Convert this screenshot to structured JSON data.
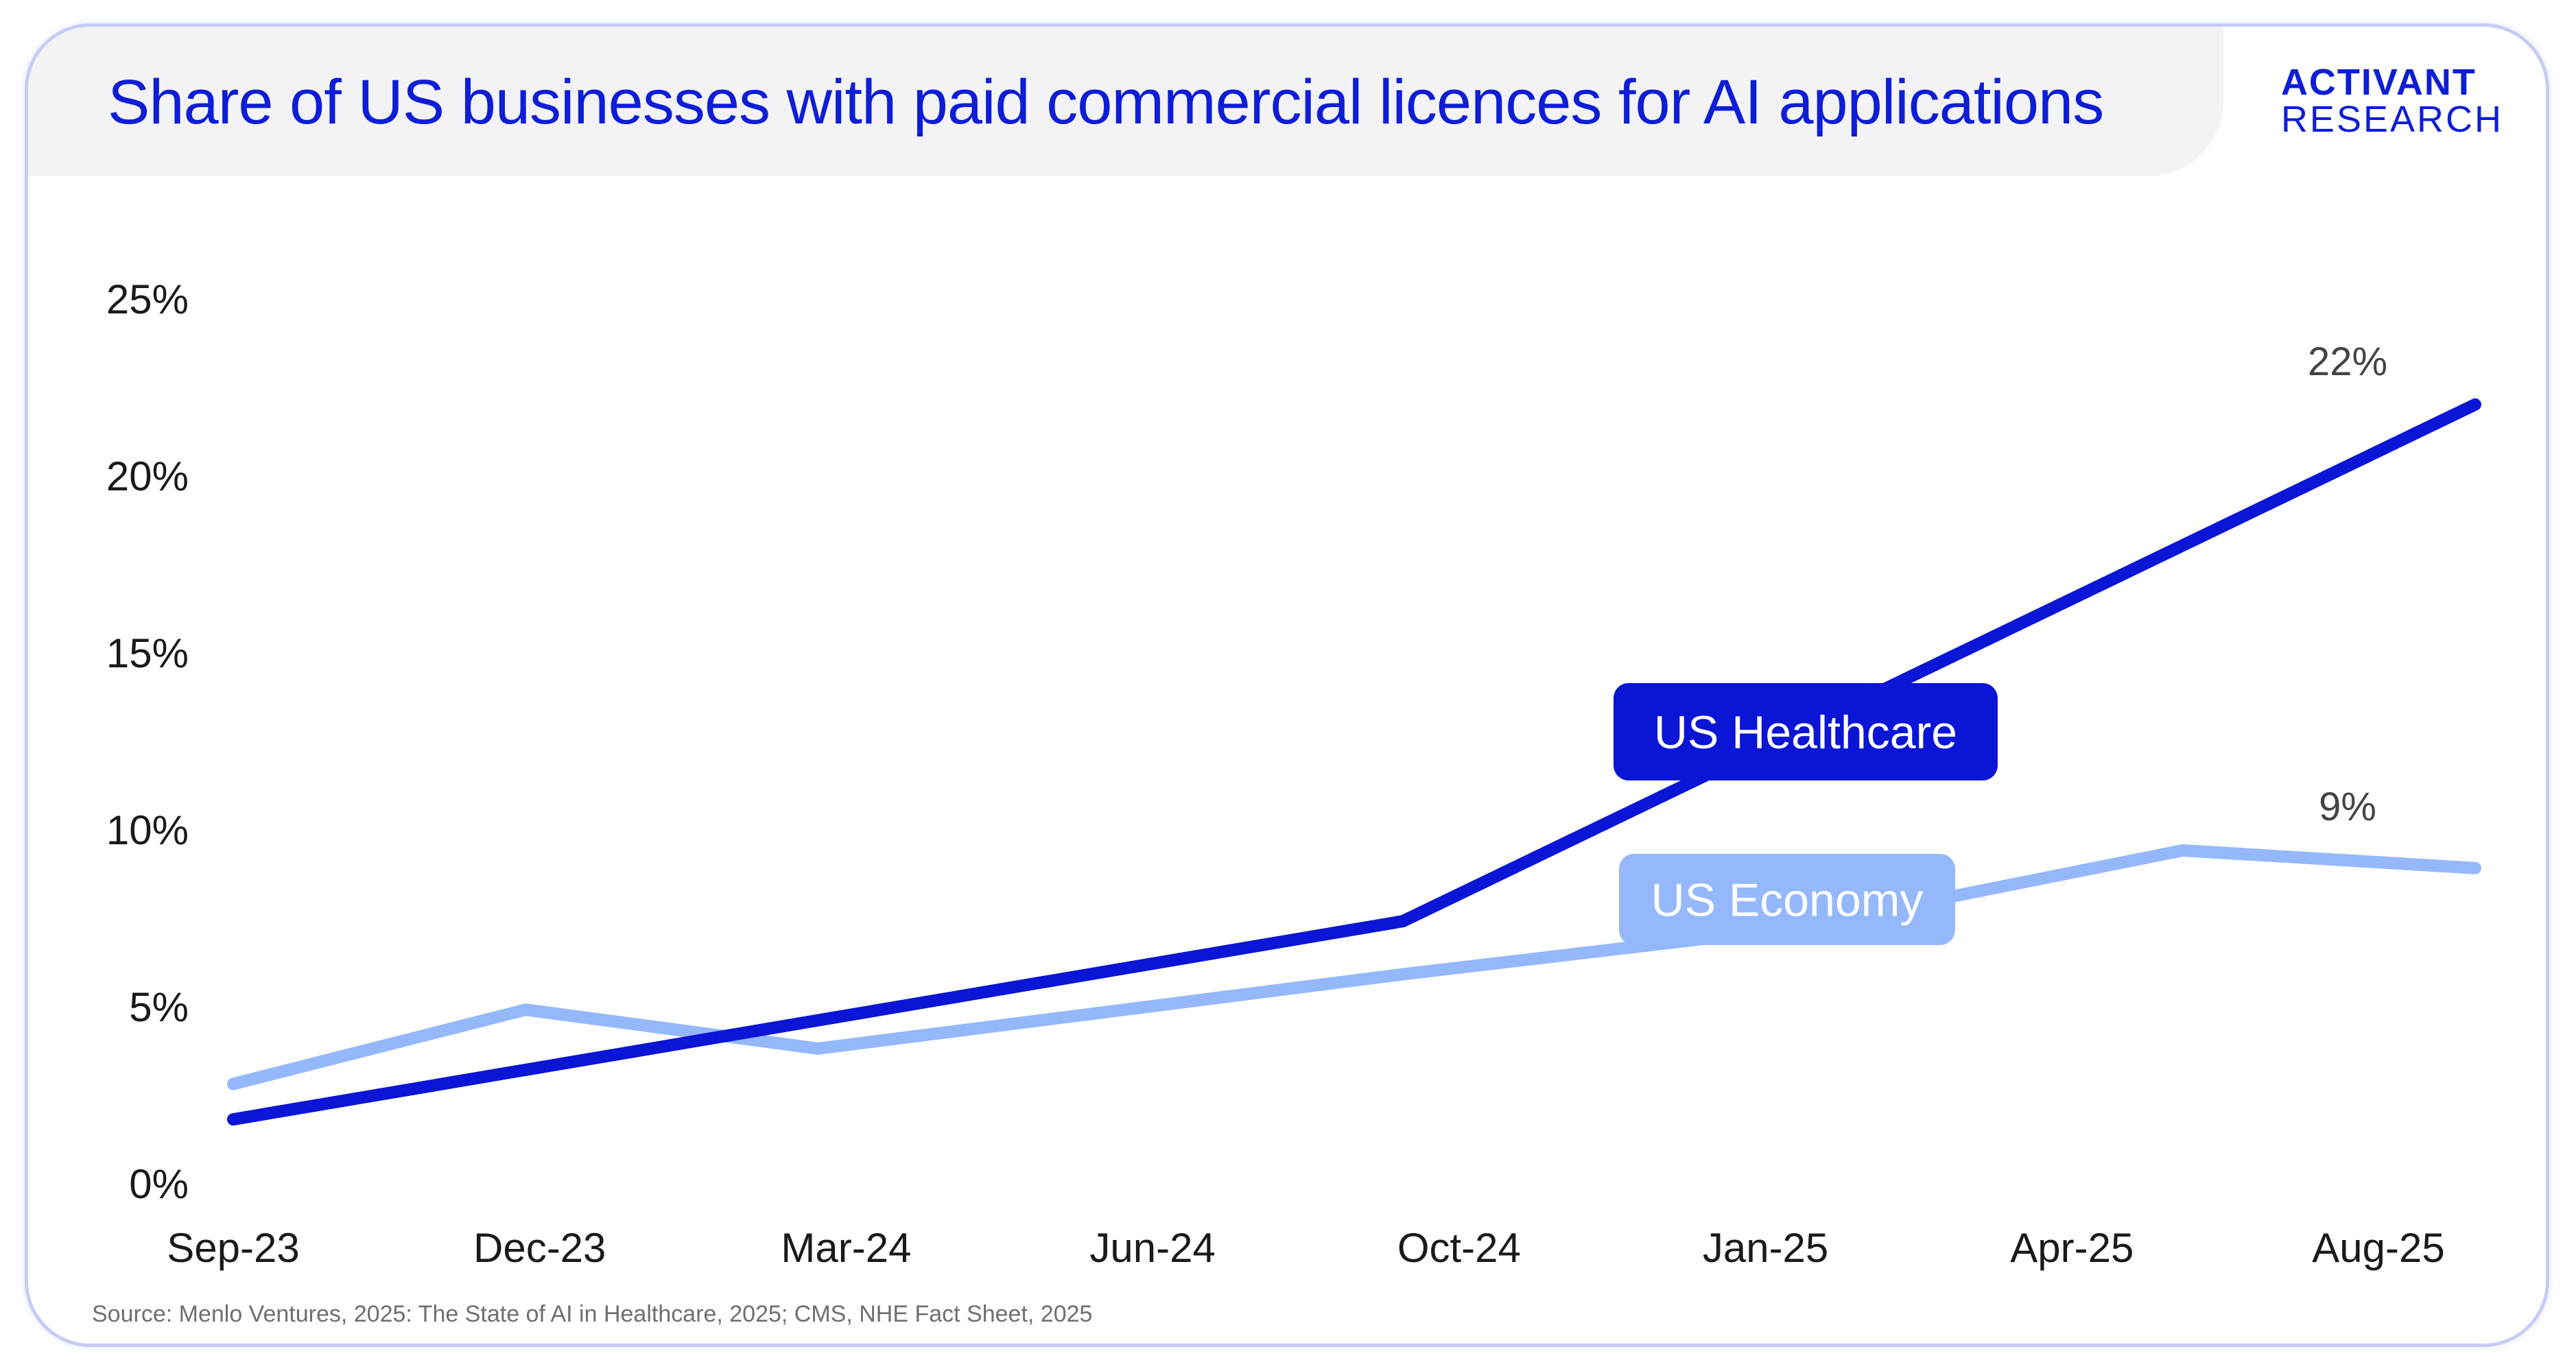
{
  "title": "Share of US businesses with paid commercial licences for AI applications",
  "brand": {
    "line1": "ACTIVANT",
    "line2": "RESEARCH"
  },
  "source": "Source: Menlo Ventures, 2025: The State of AI in Healthcare, 2025; CMS, NHE Fact Sheet, 2025",
  "colors": {
    "healthcare": "#0a15d6",
    "economy": "#94b8fb",
    "text": "#1a1a1a",
    "title": "#0e1dd6"
  },
  "chart_data": {
    "type": "line",
    "title": "Share of US businesses with paid commercial licences for AI applications",
    "xlabel": "",
    "ylabel": "",
    "x_ticks": [
      "Sep-23",
      "Dec-23",
      "Mar-24",
      "Jun-24",
      "Oct-24",
      "Jan-25",
      "Apr-25",
      "Aug-25"
    ],
    "y_ticks": [
      "0%",
      "5%",
      "10%",
      "15%",
      "20%",
      "25%"
    ],
    "ylim": [
      0,
      25
    ],
    "grid": false,
    "series": [
      {
        "name": "US Healthcare",
        "points": [
          {
            "x": "2023-09",
            "y": 1.8
          },
          {
            "x": "2024-09",
            "y": 7.4
          },
          {
            "x": "2025-08",
            "y": 22
          }
        ],
        "end_label": "22%"
      },
      {
        "name": "US Economy",
        "points": [
          {
            "x": "2023-09",
            "y": 2.8
          },
          {
            "x": "2023-12",
            "y": 4.9
          },
          {
            "x": "2024-03",
            "y": 3.8
          },
          {
            "x": "2024-09",
            "y": 5.9
          },
          {
            "x": "2025-01",
            "y": 7.2
          },
          {
            "x": "2025-05",
            "y": 9.4
          },
          {
            "x": "2025-08",
            "y": 8.9
          }
        ],
        "end_label": "9%"
      }
    ]
  }
}
